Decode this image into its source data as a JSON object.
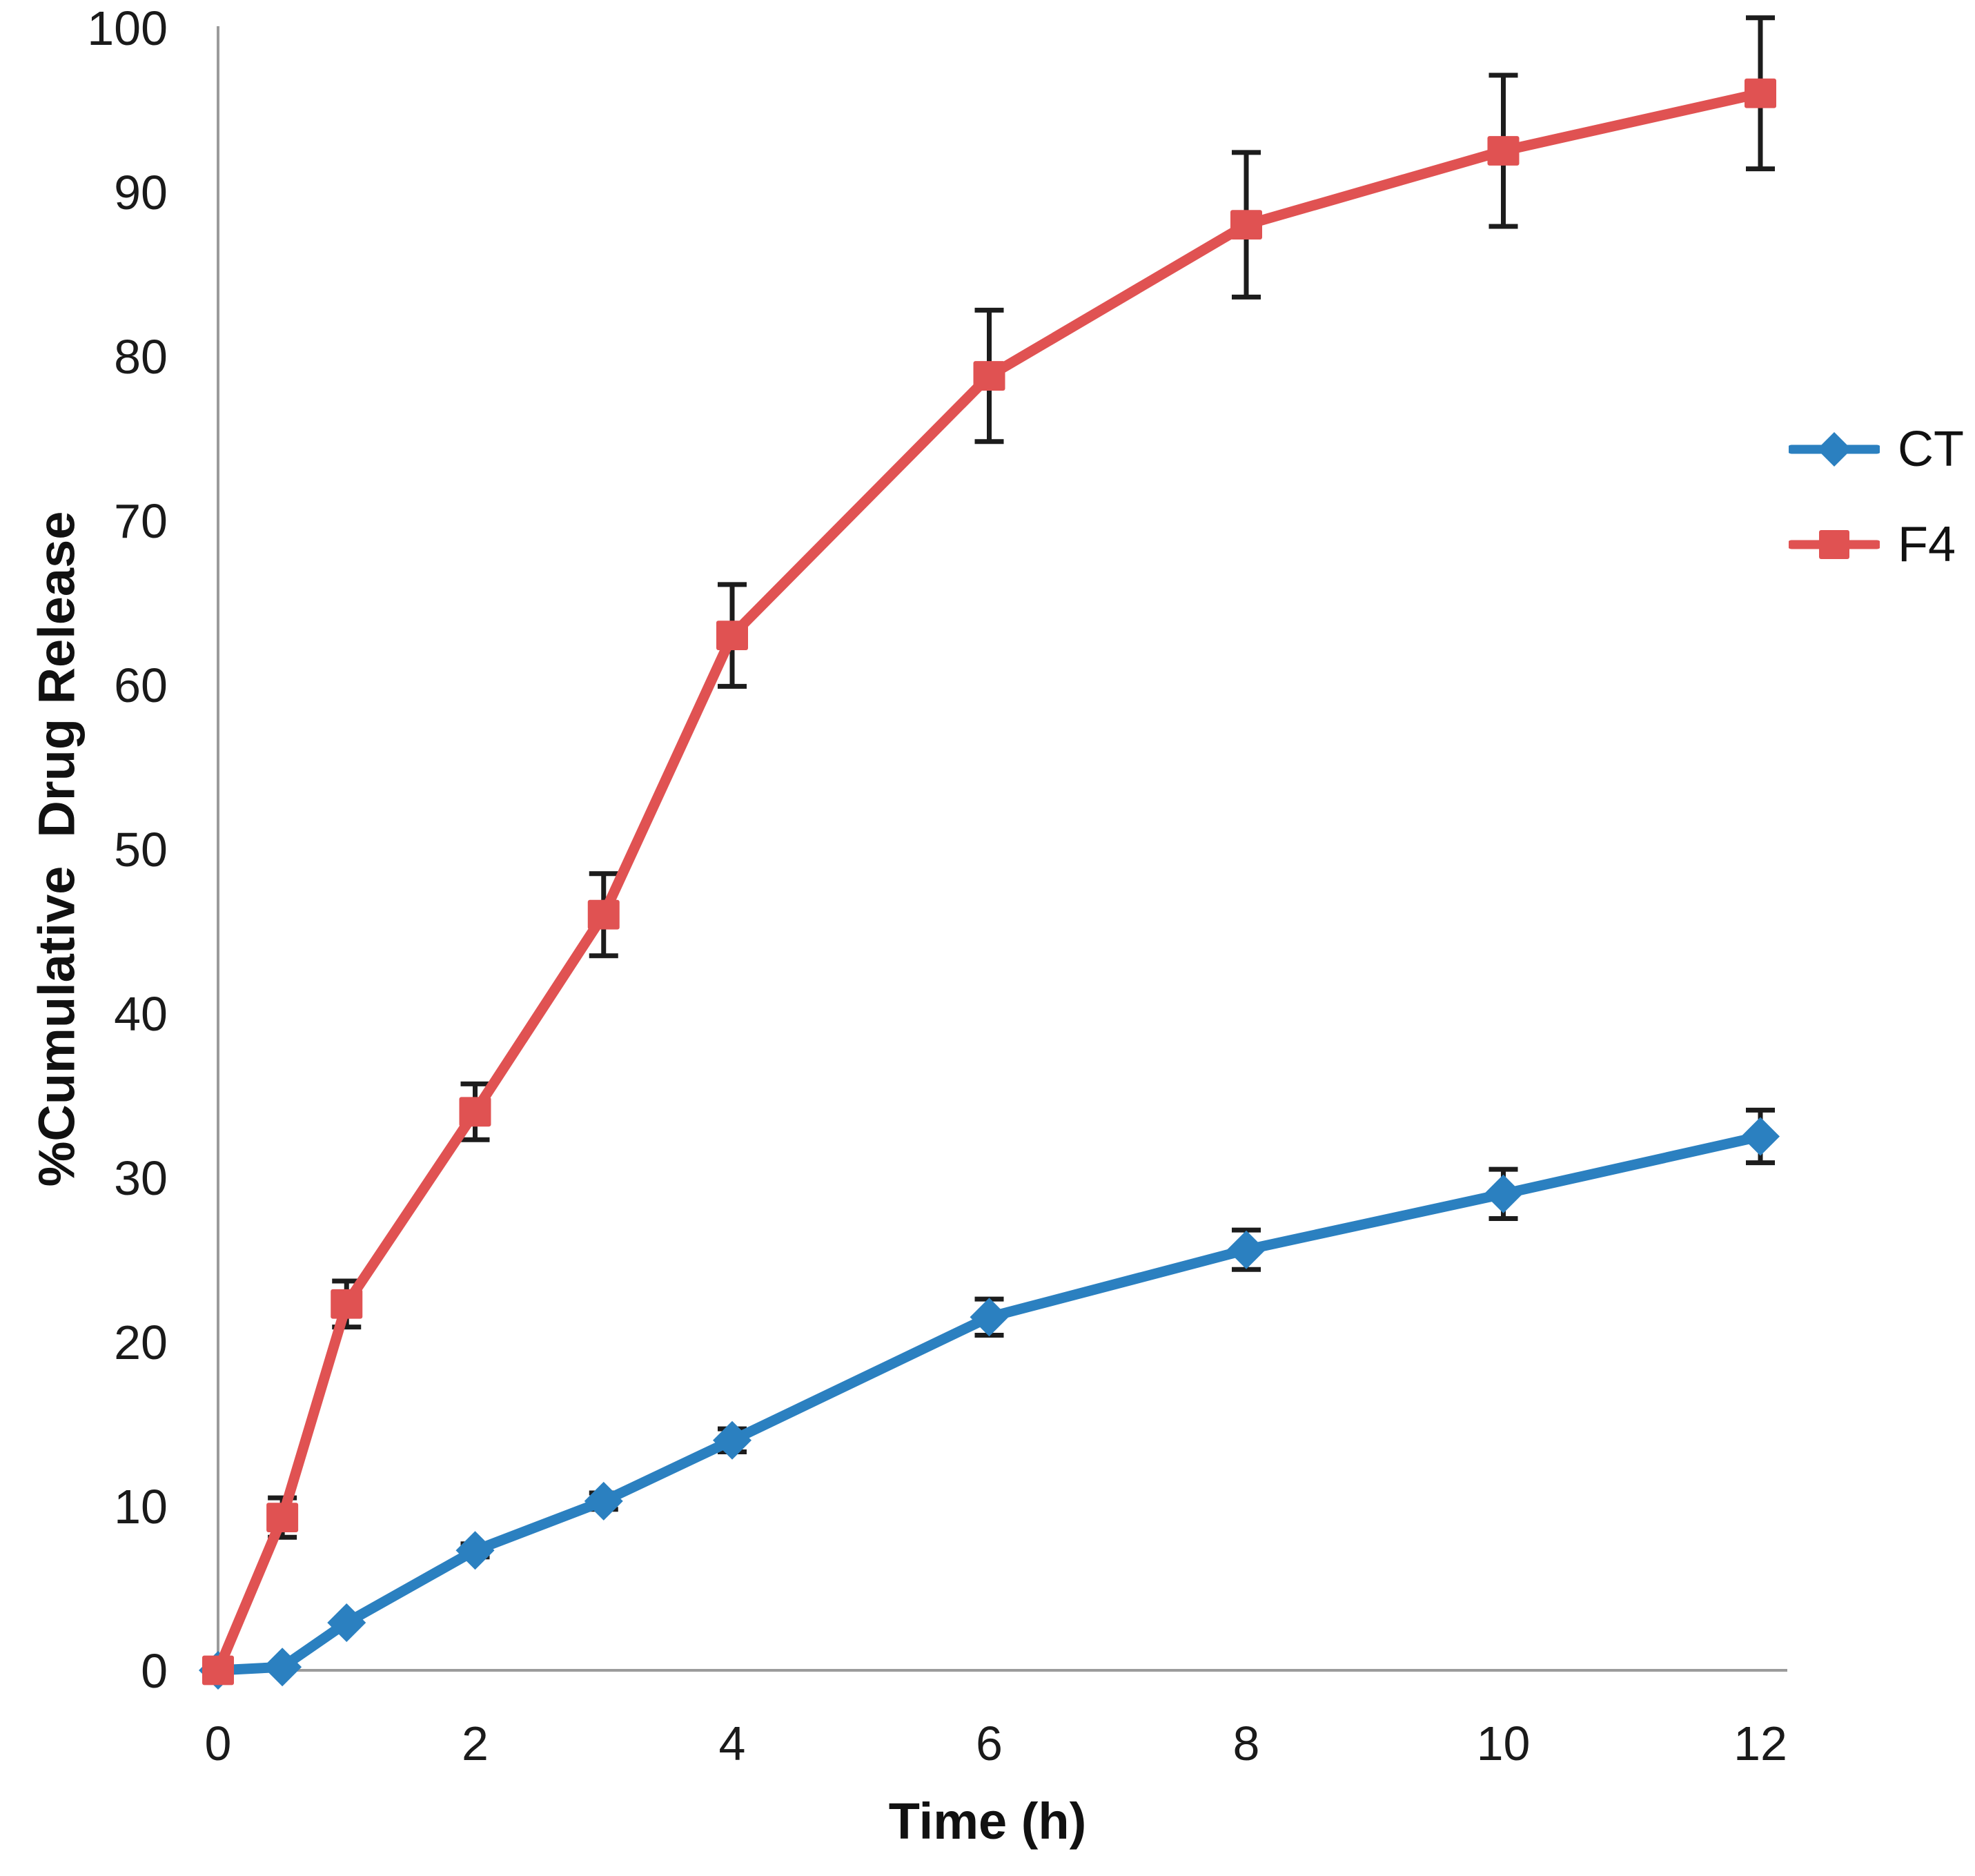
{
  "chart_data": {
    "type": "line",
    "title": "",
    "xlabel": "Time (h)",
    "ylabel": "%Cumulative  Drug Release",
    "x": [
      0,
      0.5,
      1,
      2,
      3,
      4,
      6,
      8,
      10,
      12
    ],
    "x_ticks": [
      0,
      2,
      4,
      6,
      8,
      10,
      12
    ],
    "y_ticks": [
      0,
      10,
      20,
      30,
      40,
      50,
      60,
      70,
      80,
      90,
      100
    ],
    "xlim": [
      0,
      12
    ],
    "ylim": [
      0,
      100
    ],
    "grid": false,
    "legend_position": "right",
    "axis_color": "#9b9b9b",
    "error_bar_color": "#1c1c1c",
    "text_color": "#1a1a1a",
    "series": [
      {
        "name": "CT",
        "color": "#2B80C0",
        "marker": "diamond",
        "values": [
          0,
          0.2,
          2.9,
          7.3,
          10.3,
          14.0,
          21.5,
          25.6,
          29.0,
          32.5
        ],
        "errors": [
          0,
          0,
          0,
          0.4,
          0.5,
          0.7,
          1.1,
          1.2,
          1.5,
          1.6
        ]
      },
      {
        "name": "F4",
        "color": "#E05252",
        "marker": "square",
        "values": [
          0,
          9.3,
          22.3,
          34.0,
          46.0,
          63.0,
          78.8,
          88.0,
          92.5,
          96.0
        ],
        "errors": [
          0,
          1.2,
          1.4,
          1.7,
          2.5,
          3.1,
          4.0,
          4.4,
          4.6,
          4.6
        ]
      }
    ]
  }
}
